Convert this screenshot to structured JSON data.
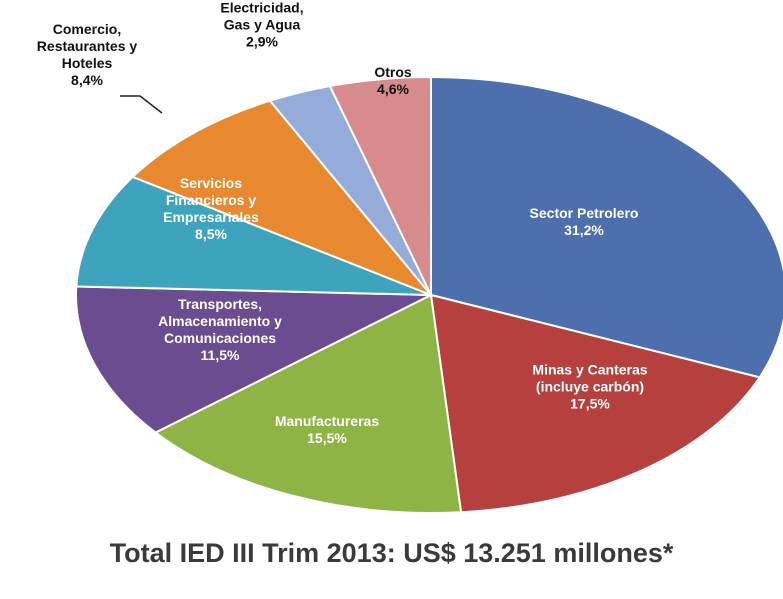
{
  "chart_data": {
    "type": "pie",
    "title": "Total IED III Trim 2013: US$ 13.251 millones*",
    "slices": [
      {
        "lines": [
          "Sector Petrolero",
          "31,2%"
        ],
        "value": 31.2,
        "color": "#4e6fae"
      },
      {
        "lines": [
          "Minas y Canteras",
          "(incluye carbón)",
          "17,5%"
        ],
        "value": 17.5,
        "color": "#b5403d"
      },
      {
        "lines": [
          "Manufactureras",
          "15,5%"
        ],
        "value": 15.5,
        "color": "#8eb446"
      },
      {
        "lines": [
          "Transportes,",
          "Almacenamiento y",
          "Comunicaciones",
          "11,5%"
        ],
        "value": 11.5,
        "color": "#6b4c90"
      },
      {
        "lines": [
          "Servicios",
          "Financieros y",
          "Empresariales",
          "8,5%"
        ],
        "value": 8.5,
        "color": "#3ea4bd"
      },
      {
        "lines": [
          "Comercio,",
          "Restaurantes y",
          "Hoteles",
          "8,4%"
        ],
        "value": 8.4,
        "color": "#e8892f"
      },
      {
        "lines": [
          "Electricidad,",
          "Gas y Agua",
          "2,9%"
        ],
        "value": 2.9,
        "color": "#95acdb"
      },
      {
        "lines": [
          "Otros",
          "4,6%"
        ],
        "value": 4.6,
        "color": "#d88b8d"
      }
    ]
  }
}
